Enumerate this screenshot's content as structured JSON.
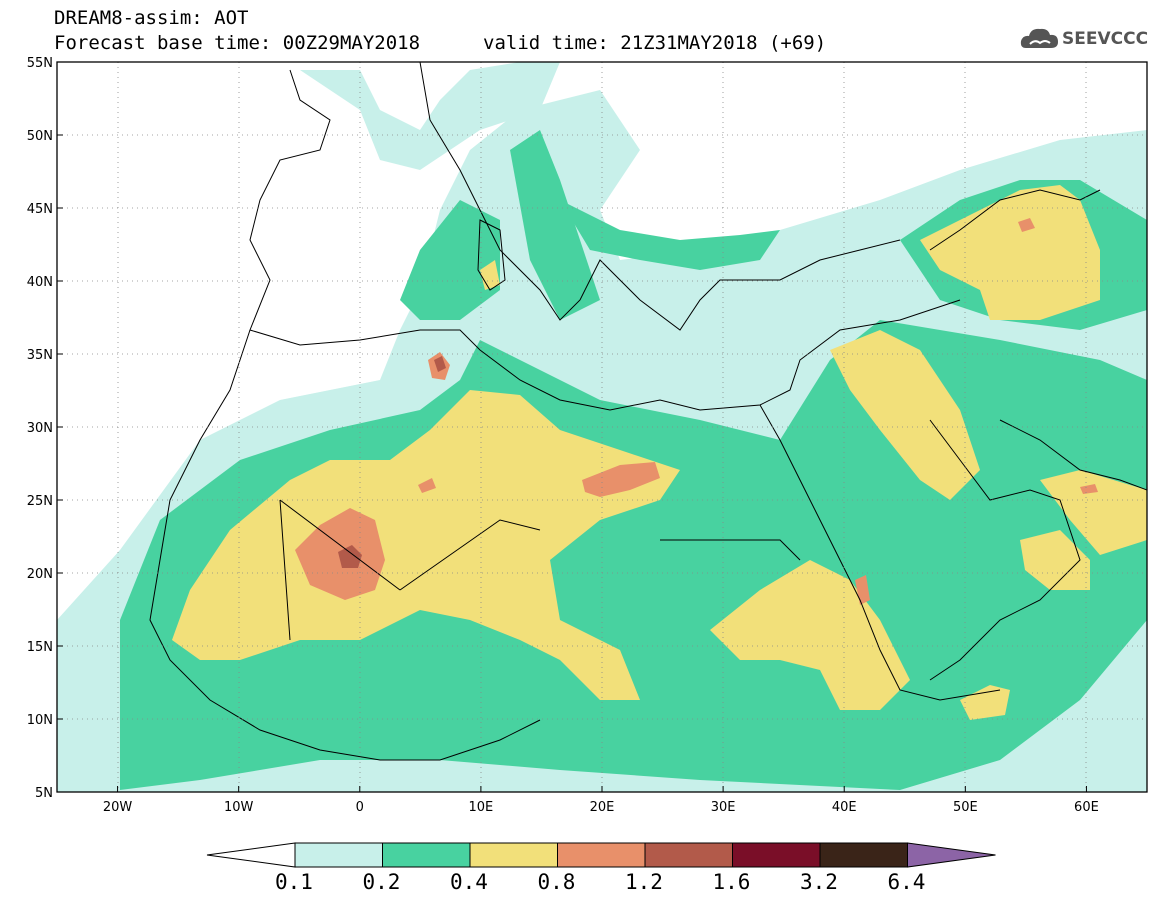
{
  "header": {
    "line1": "DREAM8-assim: AOT",
    "line2": "Forecast base time: 00Z29MAY2018",
    "valid": "valid time: 21Z31MAY2018 (+69)"
  },
  "logo": {
    "text": "SEEVCCC",
    "icon": "cloud-icon"
  },
  "map": {
    "lon_range": [
      -25,
      65
    ],
    "lat_range": [
      5,
      55
    ],
    "x_ticks": [
      "20W",
      "10W",
      "0",
      "10E",
      "20E",
      "30E",
      "40E",
      "50E",
      "60E"
    ],
    "y_ticks": [
      "55N",
      "50N",
      "45N",
      "40N",
      "35N",
      "30N",
      "25N",
      "20N",
      "15N",
      "10N",
      "5N"
    ]
  },
  "colorbar": {
    "levels": [
      "0.1",
      "0.2",
      "0.4",
      "0.8",
      "1.2",
      "1.6",
      "3.2",
      "6.4"
    ],
    "colors": [
      "#c8f0ea",
      "#48d2a0",
      "#f2e07a",
      "#e8906a",
      "#b25a4a",
      "#7a0e28",
      "#3a2418",
      "#8c64a6"
    ]
  }
}
